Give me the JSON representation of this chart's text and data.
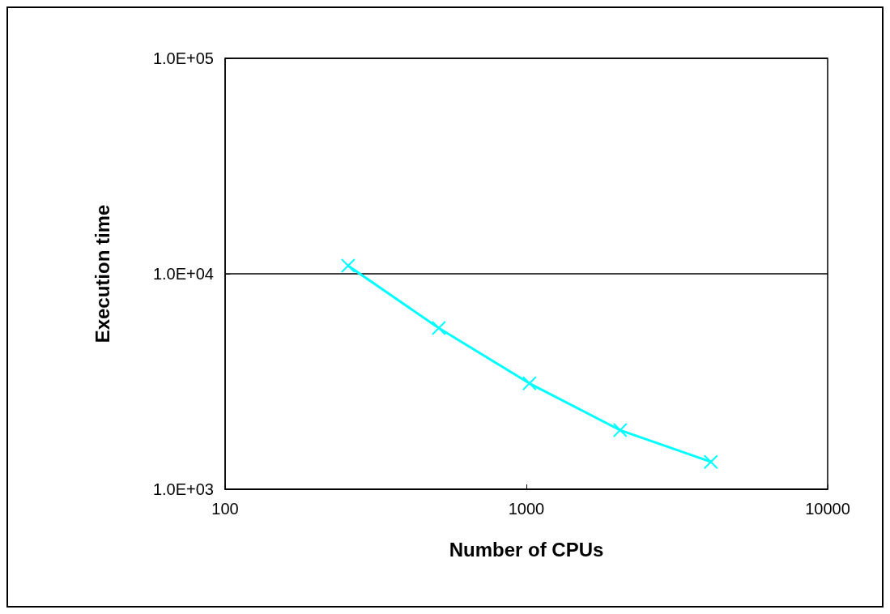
{
  "chart_data": {
    "type": "line",
    "xlabel": "Number of CPUs",
    "ylabel": "Execution time",
    "x": [
      256,
      512,
      1024,
      2048,
      4096
    ],
    "series": [
      {
        "color": "#00ffff",
        "values": [
          10900,
          5600,
          3100,
          1880,
          1340
        ]
      }
    ],
    "log": "xy",
    "xlim": [
      100,
      10000
    ],
    "xticks": [
      100,
      1000,
      10000
    ],
    "ylim": [
      1000,
      100000
    ],
    "yticks": [
      {
        "value": 1000,
        "label": "1.0E+03"
      },
      {
        "value": 10000,
        "label": "1.0E+04"
      },
      {
        "value": 100000,
        "label": "1.0E+05"
      }
    ],
    "grid": "y",
    "marker": "cross",
    "line_style": "solid"
  }
}
